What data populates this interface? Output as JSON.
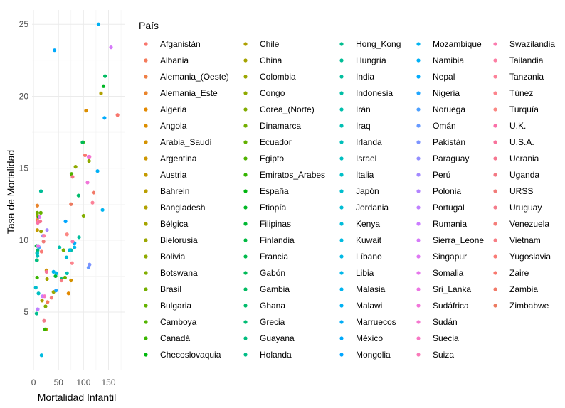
{
  "chart_data": {
    "type": "scatter",
    "xlabel": "Mortalidad Infantil",
    "ylabel": "Tasa de Mortalidad",
    "xlim": [
      -3,
      182
    ],
    "ylim": [
      1,
      26
    ],
    "x_ticks": [
      0,
      50,
      100,
      150
    ],
    "y_ticks": [
      5,
      10,
      15,
      20,
      25
    ],
    "grid": true,
    "legend_title": "País",
    "legend_position": "right",
    "series": [
      {
        "name": "Afganistán",
        "color": "#F8766D",
        "x": 168,
        "y": 18.7
      },
      {
        "name": "Albania",
        "color": "#F47A5A",
        "x": 28,
        "y": 5.7
      },
      {
        "name": "Alemania_(Oeste)",
        "color": "#EF7F46",
        "x": 7.5,
        "y": 11.4
      },
      {
        "name": "Alemania_Este",
        "color": "#E9842C",
        "x": 7.6,
        "y": 12.4
      },
      {
        "name": "Algeria",
        "color": "#E38900",
        "x": 70,
        "y": 6.3
      },
      {
        "name": "Angola",
        "color": "#DC8E00",
        "x": 105,
        "y": 19
      },
      {
        "name": "Arabia_Saudí",
        "color": "#D49200",
        "x": 75,
        "y": 7.2
      },
      {
        "name": "Argentina",
        "color": "#CC9600",
        "x": 26,
        "y": 7.9
      },
      {
        "name": "Austria",
        "color": "#C49A00",
        "x": 7.5,
        "y": 10.7
      },
      {
        "name": "Bahrein",
        "color": "#BA9E00",
        "x": 25,
        "y": 3.8
      },
      {
        "name": "Bangladesh",
        "color": "#B0A100",
        "x": 135,
        "y": 20.2
      },
      {
        "name": "Bélgica",
        "color": "#A6A400",
        "x": 7.9,
        "y": 11.7
      },
      {
        "name": "Bielorusia",
        "color": "#9BA700",
        "x": 15,
        "y": 10.6
      },
      {
        "name": "Bolivia",
        "color": "#8FAA00",
        "x": 111,
        "y": 15.5
      },
      {
        "name": "Botswana",
        "color": "#82AD00",
        "x": 100,
        "y": 11.7
      },
      {
        "name": "Brasil",
        "color": "#74AF00",
        "x": 60,
        "y": 9.3
      },
      {
        "name": "Bulgaria",
        "color": "#64B200",
        "x": 14.5,
        "y": 11.9
      },
      {
        "name": "Camboya",
        "color": "#52B400",
        "x": 99,
        "y": 16.8
      },
      {
        "name": "Canadá",
        "color": "#3AB600",
        "x": 7.2,
        "y": 7.4
      },
      {
        "name": "Checoslovaquia",
        "color": "#00B70C",
        "x": 10.5,
        "y": 11.6
      },
      {
        "name": "Chile",
        "color": "#AE9F00",
        "x": 17,
        "y": 5.8
      },
      {
        "name": "China",
        "color": "#A5A300",
        "x": 27,
        "y": 7.3
      },
      {
        "name": "Colombia",
        "color": "#9AA600",
        "x": 40,
        "y": 6.4
      },
      {
        "name": "Congo",
        "color": "#8FA900",
        "x": 84,
        "y": 15.1
      },
      {
        "name": "Corea_(Norte)",
        "color": "#81AC00",
        "x": 24,
        "y": 5.4
      },
      {
        "name": "Dinamarca",
        "color": "#72AE00",
        "x": 7.5,
        "y": 11.9
      },
      {
        "name": "Ecuador",
        "color": "#62B000",
        "x": 63,
        "y": 7.4
      },
      {
        "name": "Egipto",
        "color": "#4FB200",
        "x": 76,
        "y": 14.6
      },
      {
        "name": "Emiratos_Arabes",
        "color": "#34B400",
        "x": 23,
        "y": 3.8
      },
      {
        "name": "España",
        "color": "#00B50F",
        "x": 6.9,
        "y": 8.6
      },
      {
        "name": "Etiopía",
        "color": "#00B725",
        "x": 140,
        "y": 20.7
      },
      {
        "name": "Filipinas",
        "color": "#00B834",
        "x": 44,
        "y": 7.5
      },
      {
        "name": "Finlandia",
        "color": "#00B941",
        "x": 5.8,
        "y": 9.6
      },
      {
        "name": "Francia",
        "color": "#00BA4C",
        "x": 7.2,
        "y": 9.1
      },
      {
        "name": "Gabón",
        "color": "#00BA57",
        "x": 98,
        "y": 16.8
      },
      {
        "name": "Gambia",
        "color": "#00BB61",
        "x": 143,
        "y": 21.4
      },
      {
        "name": "Ghana",
        "color": "#00BB6B",
        "x": 90,
        "y": 13.1
      },
      {
        "name": "Grecia",
        "color": "#00BC74",
        "x": 8.2,
        "y": 9.3
      },
      {
        "name": "Guayana",
        "color": "#00BC7D",
        "x": 56,
        "y": 7.3
      },
      {
        "name": "Holanda",
        "color": "#00BC86",
        "x": 6.3,
        "y": 8.6
      },
      {
        "name": "Hong_Kong",
        "color": "#00BD8E",
        "x": 6.1,
        "y": 4.9
      },
      {
        "name": "Hungría",
        "color": "#00BD96",
        "x": 14.8,
        "y": 13.4
      },
      {
        "name": "India",
        "color": "#00BE9D",
        "x": 91,
        "y": 10.2
      },
      {
        "name": "Indonesia",
        "color": "#00BEA5",
        "x": 75,
        "y": 9.3
      },
      {
        "name": "Irán",
        "color": "#00BFAC",
        "x": 52,
        "y": 9.5
      },
      {
        "name": "Iraq",
        "color": "#00BFB3",
        "x": 67,
        "y": 7.7
      },
      {
        "name": "Irlanda",
        "color": "#00BFBA",
        "x": 7.9,
        "y": 8.9
      },
      {
        "name": "Israel",
        "color": "#00BFC1",
        "x": 9.9,
        "y": 6.3
      },
      {
        "name": "Italia",
        "color": "#00BFC7",
        "x": 7.6,
        "y": 9.1
      },
      {
        "name": "Japón",
        "color": "#00BECE",
        "x": 4.5,
        "y": 6.7
      },
      {
        "name": "Jordania",
        "color": "#00BDD4",
        "x": 66,
        "y": 8.8
      },
      {
        "name": "Kenya",
        "color": "#00BCDA",
        "x": 72,
        "y": 9.3
      },
      {
        "name": "Kuwait",
        "color": "#00BBE0",
        "x": 16,
        "y": 2.0
      },
      {
        "name": "Líbano",
        "color": "#00B9E5",
        "x": 46,
        "y": 7.7
      },
      {
        "name": "Libia",
        "color": "#00B7EA",
        "x": 82,
        "y": 9.5
      },
      {
        "name": "Malasia",
        "color": "#00B4EF",
        "x": 40,
        "y": 7.8
      },
      {
        "name": "Malawi",
        "color": "#00B1F3",
        "x": 130,
        "y": 25.0
      },
      {
        "name": "Marruecos",
        "color": "#00ADF7",
        "x": 82,
        "y": 9.8
      },
      {
        "name": "México",
        "color": "#00A9FB",
        "x": 42,
        "y": 23.2
      },
      {
        "name": "Mongolia",
        "color": "#00A6FF",
        "x": 64,
        "y": 11.3
      },
      {
        "name": "Mozambique",
        "color": "#00B4F0",
        "x": 138,
        "y": 12.1
      },
      {
        "name": "Namibia",
        "color": "#00B0F6",
        "x": 128,
        "y": 14.8
      },
      {
        "name": "Nepal",
        "color": "#00ABFC",
        "x": 142,
        "y": 18.5
      },
      {
        "name": "Nigeria",
        "color": "#1FA6FF",
        "x": 45,
        "y": 6.5
      },
      {
        "name": "Noruega",
        "color": "#4B9FFF",
        "x": 11,
        "y": 9.5
      },
      {
        "name": "Omán",
        "color": "#6699FF",
        "x": 110,
        "y": 8.1
      },
      {
        "name": "Pakistán",
        "color": "#7D94FF",
        "x": 112,
        "y": 8.3
      },
      {
        "name": "Paraguay",
        "color": "#928EFF",
        "x": 19,
        "y": 10.3
      },
      {
        "name": "Perú",
        "color": "#A389FF",
        "x": 27,
        "y": 10.7
      },
      {
        "name": "Polonia",
        "color": "#B284FF",
        "x": 8.8,
        "y": 9.6
      },
      {
        "name": "Portugal",
        "color": "#BF80FF",
        "x": 8.4,
        "y": 5.2
      },
      {
        "name": "Rumania",
        "color": "#CB7CFF",
        "x": 18,
        "y": 6.1
      },
      {
        "name": "Sierra_Leone",
        "color": "#D57AF9",
        "x": 155,
        "y": 23.4
      },
      {
        "name": "Singapur",
        "color": "#DE77F3",
        "x": 12,
        "y": 11.6
      },
      {
        "name": "Somalia",
        "color": "#E676EB",
        "x": 110,
        "y": 15.8
      },
      {
        "name": "Sri_Lanka",
        "color": "#EC75E3",
        "x": 9.6,
        "y": 9.6
      },
      {
        "name": "Sudáfrica",
        "color": "#F175D9",
        "x": 108,
        "y": 14.0
      },
      {
        "name": "Sudán",
        "color": "#F576CF",
        "x": 112,
        "y": 15.8
      },
      {
        "name": "Suecia",
        "color": "#F877C4",
        "x": 22,
        "y": 6.1
      },
      {
        "name": "Suiza",
        "color": "#FA79B9",
        "x": 10,
        "y": 11.3
      },
      {
        "name": "Swazilandia",
        "color": "#FB7BAE",
        "x": 78,
        "y": 9.9
      },
      {
        "name": "Tailandia",
        "color": "#FC7EA3",
        "x": 21,
        "y": 10.3
      },
      {
        "name": "Tanzania",
        "color": "#FC8198",
        "x": 118,
        "y": 12.6
      },
      {
        "name": "Túnez",
        "color": "#FC848D",
        "x": 77,
        "y": 8.4
      },
      {
        "name": "Turquía",
        "color": "#FB8783",
        "x": 67,
        "y": 10.4
      },
      {
        "name": "U.K.",
        "color": "#FA6FA8",
        "x": 8.5,
        "y": 11.2
      },
      {
        "name": "U.S.A.",
        "color": "#F8729B",
        "x": 26,
        "y": 7.8
      },
      {
        "name": "Ucrania",
        "color": "#F6758F",
        "x": 13.5,
        "y": 11.3
      },
      {
        "name": "Uganda",
        "color": "#F37884",
        "x": 78,
        "y": 14.4
      },
      {
        "name": "URSS",
        "color": "#F17B79",
        "x": 20,
        "y": 9.9
      },
      {
        "name": "Uruguay",
        "color": "#F47B8A",
        "x": 21,
        "y": 4.4
      },
      {
        "name": "Venezuela",
        "color": "#F57D79",
        "x": 36,
        "y": 6.0
      },
      {
        "name": "Vietnam",
        "color": "#F77C83",
        "x": 56,
        "y": 7.2
      },
      {
        "name": "Yugoslavia",
        "color": "#F97B76",
        "x": 16,
        "y": 9.2
      },
      {
        "name": "Zaire",
        "color": "#F8786E",
        "x": 103,
        "y": 15.9
      },
      {
        "name": "Zambia",
        "color": "#F27967",
        "x": 120,
        "y": 13.3
      },
      {
        "name": "Zimbabwe",
        "color": "#EC7A60",
        "x": 75,
        "y": 12.5
      }
    ]
  }
}
